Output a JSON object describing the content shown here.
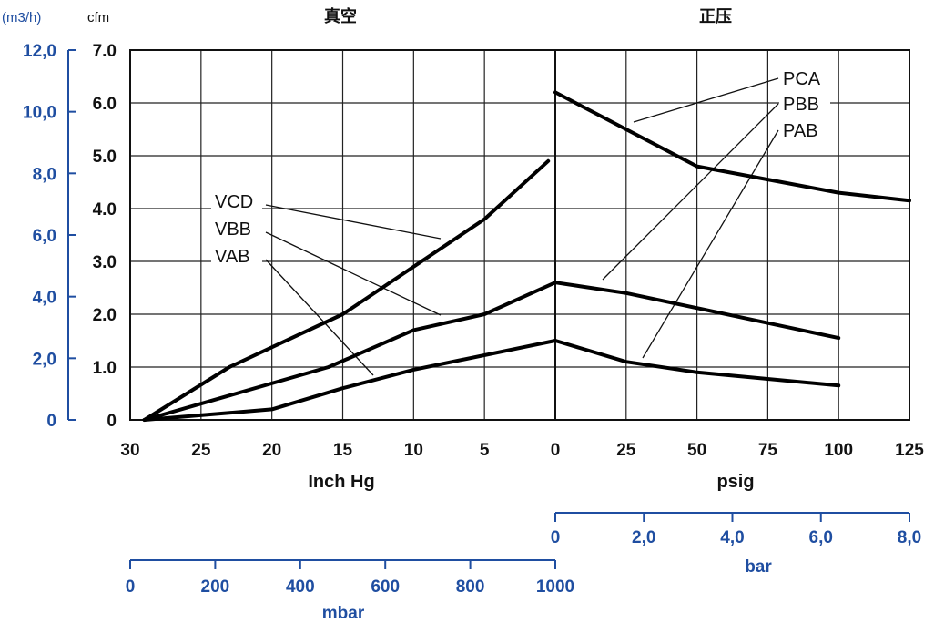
{
  "chart_data": {
    "type": "line",
    "headers": {
      "vacuum": "真空",
      "pressure": "正压"
    },
    "units": {
      "flow_metric": "(m3/h)",
      "flow_imperial": "cfm"
    },
    "y_cfm": {
      "ticks": [
        "0",
        "1.0",
        "2.0",
        "3.0",
        "4.0",
        "5.0",
        "6.0",
        "7.0"
      ],
      "range": [
        0,
        7
      ]
    },
    "y_m3h": {
      "ticks": [
        "0",
        "2,0",
        "4,0",
        "6,0",
        "8,0",
        "10,0",
        "12,0"
      ],
      "range": [
        0,
        12
      ]
    },
    "x_vacuum": {
      "label": "Inch Hg",
      "ticks": [
        "30",
        "25",
        "20",
        "15",
        "10",
        "5",
        "0"
      ],
      "range": [
        30,
        0
      ]
    },
    "x_pressure": {
      "label": "psig",
      "ticks": [
        "0",
        "25",
        "50",
        "75",
        "100",
        "125"
      ],
      "range": [
        0,
        125
      ]
    },
    "x_mbar": {
      "label": "mbar",
      "ticks": [
        "0",
        "200",
        "400",
        "600",
        "800",
        "1000"
      ],
      "range": [
        0,
        1000
      ]
    },
    "x_bar": {
      "label": "bar",
      "ticks": [
        "0",
        "2,0",
        "4,0",
        "6,0",
        "8,0"
      ],
      "range": [
        0,
        8
      ]
    },
    "vacuum_series": [
      {
        "name": "VCD",
        "x": [
          29,
          23,
          15,
          5,
          0.5
        ],
        "y": [
          0,
          1.0,
          2.0,
          3.8,
          4.9
        ]
      },
      {
        "name": "VBB",
        "x": [
          29,
          16,
          10,
          5,
          0
        ],
        "y": [
          0,
          1.0,
          1.7,
          2.0,
          2.6
        ]
      },
      {
        "name": "VAB",
        "x": [
          29,
          20,
          15,
          10,
          0
        ],
        "y": [
          0,
          0.2,
          0.6,
          0.95,
          1.5
        ]
      }
    ],
    "pressure_series": [
      {
        "name": "PCA",
        "x": [
          0,
          25,
          50,
          100,
          125
        ],
        "y": [
          6.2,
          5.5,
          4.8,
          4.3,
          4.15
        ]
      },
      {
        "name": "PBB",
        "x": [
          0,
          25,
          100
        ],
        "y": [
          2.6,
          2.4,
          1.55
        ]
      },
      {
        "name": "PAB",
        "x": [
          0,
          25,
          50,
          100
        ],
        "y": [
          1.5,
          1.1,
          0.9,
          0.65
        ]
      }
    ]
  }
}
